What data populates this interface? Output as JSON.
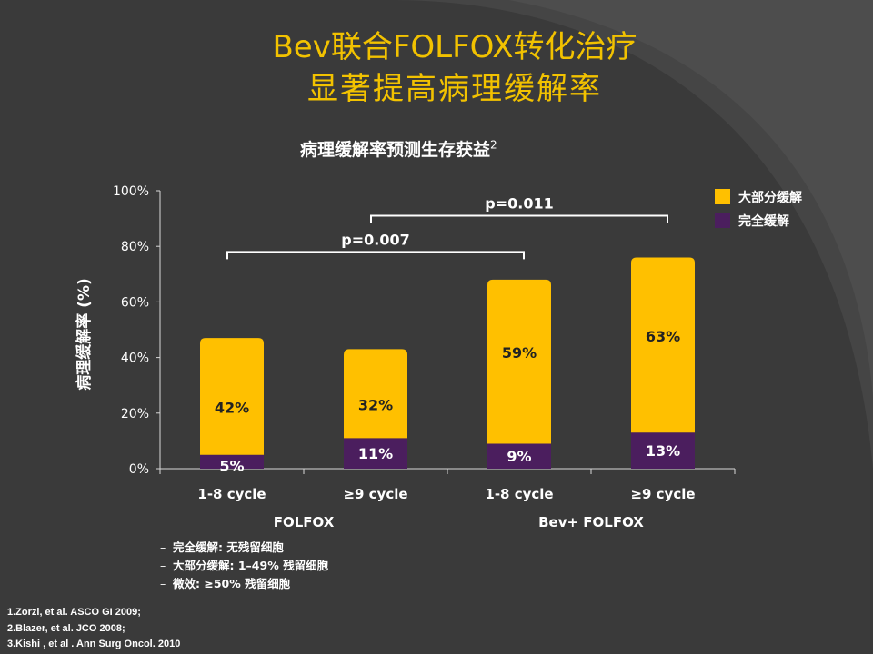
{
  "slide": {
    "title_line1": "Bev联合FOLFOX转化治疗",
    "title_line2": "显著提高病理缓解率",
    "subtitle": "病理缓解率预测生存获益",
    "subtitle_sup": "2"
  },
  "chart_data": {
    "type": "bar",
    "stacked": true,
    "ylabel": "病理缓解率 (%)",
    "ylim": [
      0,
      100
    ],
    "yticks": [
      "0%",
      "20%",
      "40%",
      "60%",
      "80%",
      "100%"
    ],
    "categories": [
      "1-8 cycle",
      "≥9 cycle",
      "1-8 cycle",
      "≥9 cycle"
    ],
    "groups": [
      {
        "label": "FOLFOX",
        "categories": [
          0,
          1
        ]
      },
      {
        "label": "Bev+ FOLFOX",
        "categories": [
          2,
          3
        ]
      }
    ],
    "series": [
      {
        "name": "完全缓解",
        "color": "#4b1e5e",
        "values": [
          5,
          11,
          9,
          13
        ],
        "labels": [
          "5%",
          "11%",
          "9%",
          "13%"
        ]
      },
      {
        "name": "大部分缓解",
        "color": "#ffc000",
        "values": [
          42,
          32,
          59,
          63
        ],
        "labels": [
          "42%",
          "32%",
          "59%",
          "63%"
        ]
      }
    ],
    "legend_position": "top-right",
    "annotations": [
      {
        "text": "p=0.007",
        "from": 0,
        "to": 2,
        "level": 78
      },
      {
        "text": "p=0.011",
        "from": 1,
        "to": 3,
        "level": 91
      }
    ],
    "grid": false
  },
  "notes": [
    "完全缓解: 无残留细胞",
    "大部分缓解: 1–49% 残留细胞",
    "微效: ≥50% 残留细胞"
  ],
  "note_bullet": "–",
  "references": [
    "1.Zorzi, et al. ASCO GI 2009;",
    "2.Blazer, et al. JCO 2008;",
    "3.Kishi , et al . Ann Surg Oncol. 2010"
  ]
}
